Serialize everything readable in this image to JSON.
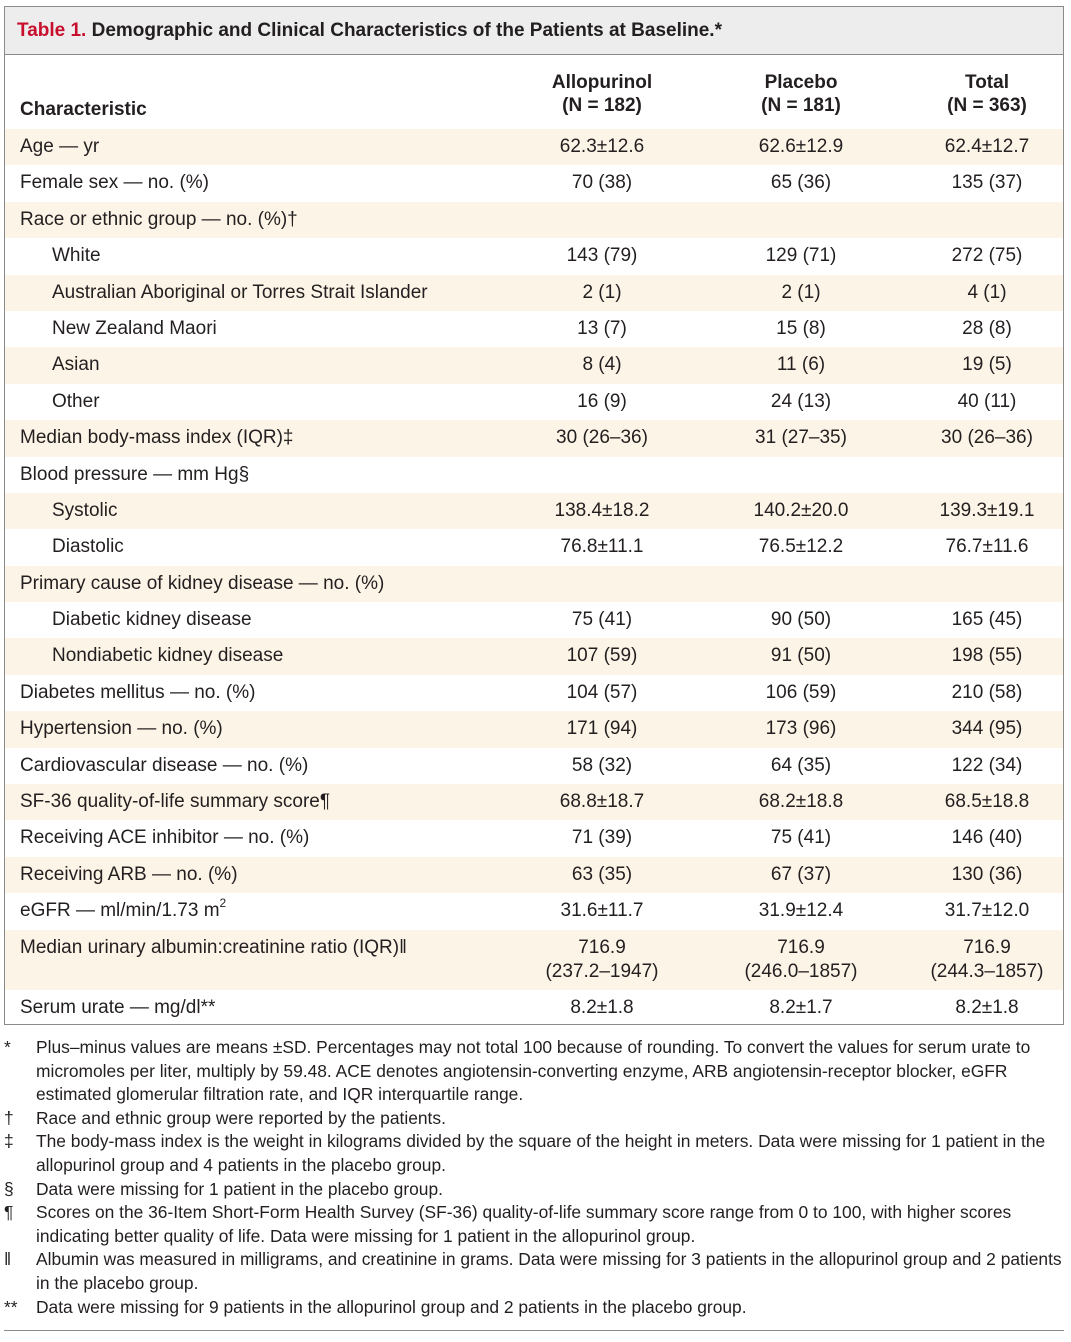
{
  "table": {
    "label": "Table 1.",
    "title": "Demographic and Clinical Characteristics of the Patients at Baseline.*",
    "header": {
      "characteristic": "Characteristic",
      "columns": [
        {
          "name": "Allopurinol",
          "n": "(N = 182)"
        },
        {
          "name": "Placebo",
          "n": "(N = 181)"
        },
        {
          "name": "Total",
          "n": "(N = 363)"
        }
      ]
    },
    "rows": [
      {
        "label": "Age — yr",
        "values": [
          "62.3±12.6",
          "62.6±12.9",
          "62.4±12.7"
        ]
      },
      {
        "label": "Female sex — no. (%)",
        "values": [
          "70 (38)",
          "65 (36)",
          "135 (37)"
        ]
      },
      {
        "label": "Race or ethnic group — no. (%)†",
        "values": [
          "",
          "",
          ""
        ]
      },
      {
        "label": "White",
        "values": [
          "143 (79)",
          "129 (71)",
          "272 (75)"
        ]
      },
      {
        "label": "Australian Aboriginal or Torres Strait Islander",
        "values": [
          "2 (1)",
          "2 (1)",
          "4 (1)"
        ]
      },
      {
        "label": "New Zealand Maori",
        "values": [
          "13 (7)",
          "15 (8)",
          "28 (8)"
        ]
      },
      {
        "label": "Asian",
        "values": [
          "8 (4)",
          "11 (6)",
          "19 (5)"
        ]
      },
      {
        "label": "Other",
        "values": [
          "16 (9)",
          "24 (13)",
          "40 (11)"
        ]
      },
      {
        "label": "Median body-mass index (IQR)‡",
        "values": [
          "30 (26–36)",
          "31 (27–35)",
          "30 (26–36)"
        ]
      },
      {
        "label": "Blood pressure — mm Hg§",
        "values": [
          "",
          "",
          ""
        ]
      },
      {
        "label": "Systolic",
        "values": [
          "138.4±18.2",
          "140.2±20.0",
          "139.3±19.1"
        ]
      },
      {
        "label": "Diastolic",
        "values": [
          "76.8±11.1",
          "76.5±12.2",
          "76.7±11.6"
        ]
      },
      {
        "label": "Primary cause of kidney disease — no. (%)",
        "values": [
          "",
          "",
          ""
        ]
      },
      {
        "label": "Diabetic kidney disease",
        "values": [
          "75 (41)",
          "90 (50)",
          "165 (45)"
        ]
      },
      {
        "label": "Nondiabetic kidney disease",
        "values": [
          "107 (59)",
          "91 (50)",
          "198 (55)"
        ]
      },
      {
        "label": "Diabetes mellitus — no. (%)",
        "values": [
          "104 (57)",
          "106 (59)",
          "210 (58)"
        ]
      },
      {
        "label": "Hypertension — no. (%)",
        "values": [
          "171 (94)",
          "173 (96)",
          "344 (95)"
        ]
      },
      {
        "label": "Cardiovascular disease — no. (%)",
        "values": [
          "58 (32)",
          "64 (35)",
          "122 (34)"
        ]
      },
      {
        "label": "SF-36 quality-of-life summary score¶",
        "values": [
          "68.8±18.7",
          "68.2±18.8",
          "68.5±18.8"
        ]
      },
      {
        "label": "Receiving ACE inhibitor — no. (%)",
        "values": [
          "71 (39)",
          "75 (41)",
          "146 (40)"
        ]
      },
      {
        "label": "Receiving ARB — no. (%)",
        "values": [
          "63 (35)",
          "67 (37)",
          "130 (36)"
        ]
      },
      {
        "label": "eGFR — ml/min/1.73 m",
        "sup": "2",
        "values": [
          "31.6±11.7",
          "31.9±12.4",
          "31.7±12.0"
        ]
      },
      {
        "label": "Median urinary albumin:creatinine ratio (IQR)‖",
        "values": [
          "716.9",
          "716.9",
          "716.9"
        ],
        "values2": [
          "(237.2–1947)",
          "(246.0–1857)",
          "(244.3–1857)"
        ]
      },
      {
        "label": "Serum urate — mg/dl**",
        "values": [
          "8.2±1.8",
          "8.2±1.7",
          "8.2±1.8"
        ]
      }
    ],
    "footnotes": [
      {
        "symbol": "*",
        "text": "Plus–minus values are means ±SD. Percentages may not total 100 because of rounding. To convert the values for serum urate to micromoles per liter, multiply by 59.48. ACE denotes angiotensin-converting enzyme, ARB angiotensin-receptor blocker, eGFR estimated glomerular filtration rate, and IQR interquartile range."
      },
      {
        "symbol": "†",
        "text": "Race and ethnic group were reported by the patients."
      },
      {
        "symbol": "‡",
        "text": "The body-mass index is the weight in kilograms divided by the square of the height in meters. Data were missing for 1 patient in the allopurinol group and 4 patients in the placebo group."
      },
      {
        "symbol": "§",
        "text": "Data were missing for 1 patient in the placebo group."
      },
      {
        "symbol": "¶",
        "text": "Scores on the 36-Item Short-Form Health Survey (SF-36) quality-of-life summary score range from 0 to 100, with higher scores indicating better quality of life. Data were missing for 1 patient in the allopurinol group."
      },
      {
        "symbol": "‖",
        "text": "Albumin was measured in milligrams, and creatinine in grams. Data were missing for 3 patients in the allopurinol group and 2 patients in the placebo group."
      },
      {
        "symbol": "**",
        "text": "Data were missing for 9 patients in the allopurinol group and 2 patients in the placebo group."
      }
    ]
  }
}
